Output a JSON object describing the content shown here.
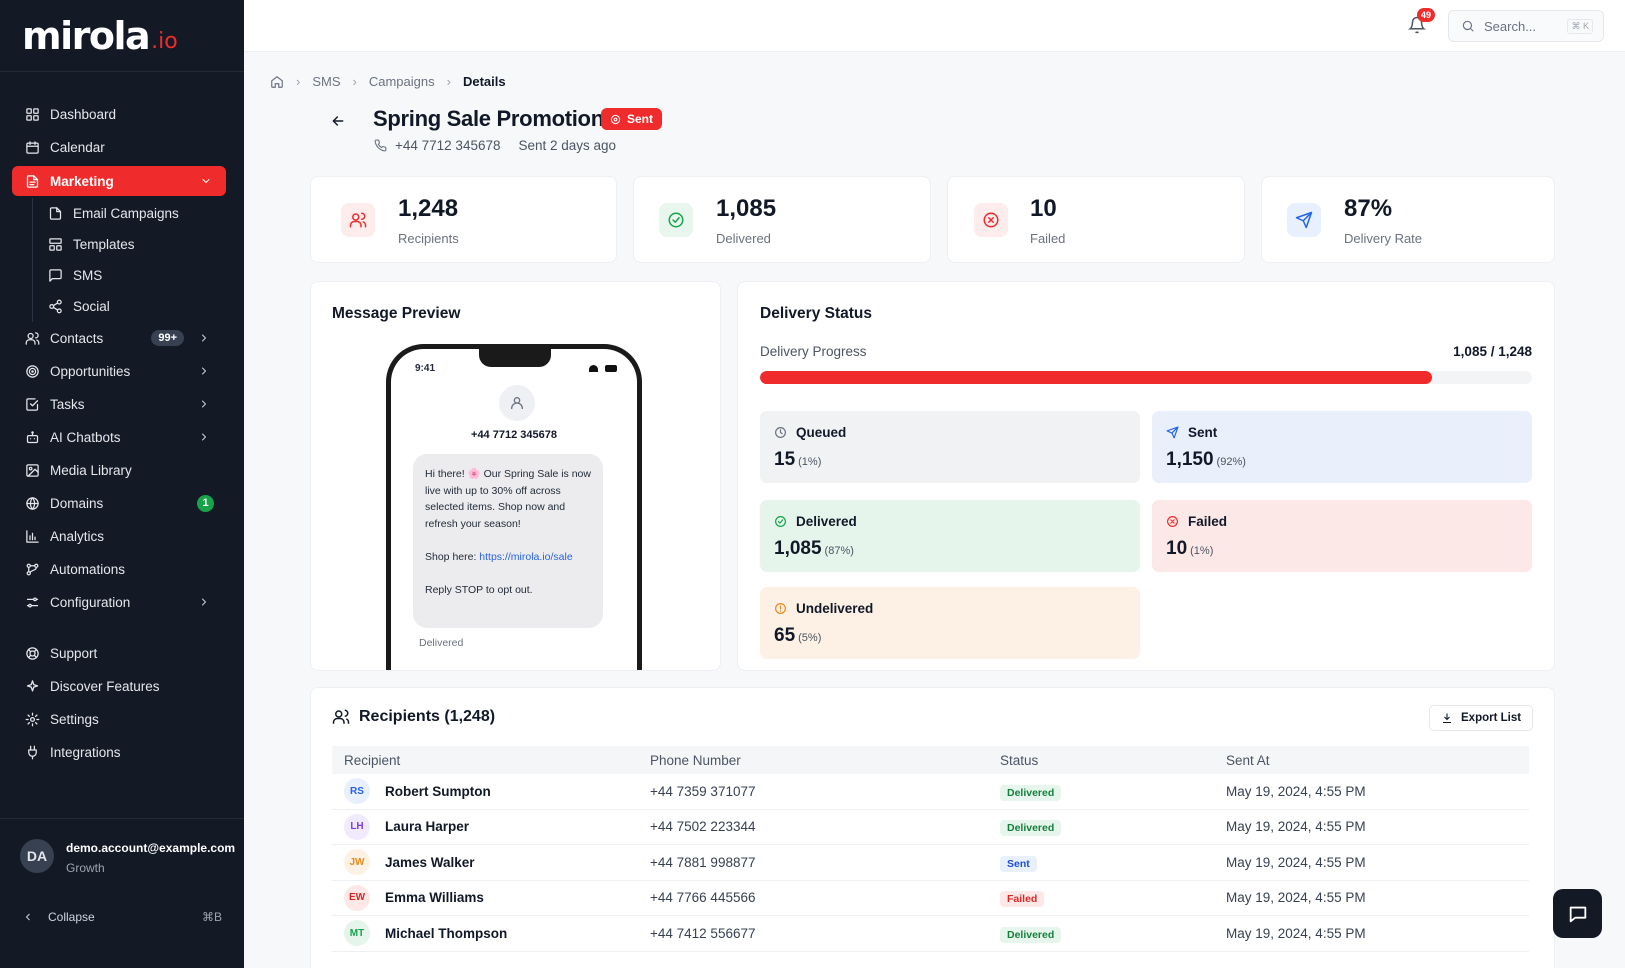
{
  "brand": {
    "name": "mirola",
    "tld": ".io"
  },
  "sidebar": {
    "items": [
      {
        "label": "Dashboard"
      },
      {
        "label": "Calendar"
      },
      {
        "label": "Marketing"
      },
      {
        "label": "Contacts",
        "badge": "99+"
      },
      {
        "label": "Opportunities"
      },
      {
        "label": "Tasks"
      },
      {
        "label": "AI Chatbots"
      },
      {
        "label": "Media Library"
      },
      {
        "label": "Domains",
        "badge": "1"
      },
      {
        "label": "Analytics"
      },
      {
        "label": "Automations"
      },
      {
        "label": "Configuration"
      },
      {
        "label": "Support"
      },
      {
        "label": "Discover Features"
      },
      {
        "label": "Settings"
      },
      {
        "label": "Integrations"
      }
    ],
    "marketing_sub": [
      {
        "label": "Email Campaigns"
      },
      {
        "label": "Templates"
      },
      {
        "label": "SMS"
      },
      {
        "label": "Social"
      }
    ],
    "user": {
      "initials": "DA",
      "email": "demo.account@example.com",
      "plan": "Growth"
    },
    "collapse": {
      "label": "Collapse",
      "shortcut": "⌘B"
    }
  },
  "topbar": {
    "notifications": "49",
    "search_placeholder": "Search...",
    "search_shortcut": "⌘ K"
  },
  "breadcrumb": [
    "SMS",
    "Campaigns",
    "Details"
  ],
  "campaign": {
    "title": "Spring Sale Promotion",
    "status": "Sent",
    "phone": "+44 7712 345678",
    "sent_ago": "Sent 2 days ago"
  },
  "stats": [
    {
      "value": "1,248",
      "label": "Recipients"
    },
    {
      "value": "1,085",
      "label": "Delivered"
    },
    {
      "value": "10",
      "label": "Failed"
    },
    {
      "value": "87%",
      "label": "Delivery Rate"
    }
  ],
  "preview": {
    "title": "Message Preview",
    "time": "9:41",
    "phone": "+44 7712 345678",
    "message_intro": "Hi there! 🌸 Our Spring Sale is now live with up to 30% off across selected items. Shop now and refresh your season!",
    "shop_label": "Shop here: ",
    "shop_link": "https://mirola.io/sale",
    "optout": "Reply STOP to opt out.",
    "status": "Delivered"
  },
  "delivery": {
    "title": "Delivery Status",
    "progress_label": "Delivery Progress",
    "progress_text": "1,085 / 1,248",
    "progress_fraction": 0.87,
    "tiles": [
      {
        "label": "Queued",
        "value": "15",
        "pct": "(1%)"
      },
      {
        "label": "Sent",
        "value": "1,150",
        "pct": "(92%)"
      },
      {
        "label": "Delivered",
        "value": "1,085",
        "pct": "(87%)"
      },
      {
        "label": "Failed",
        "value": "10",
        "pct": "(1%)"
      },
      {
        "label": "Undelivered",
        "value": "65",
        "pct": "(5%)"
      }
    ]
  },
  "recipients": {
    "title": "Recipients (1,248)",
    "export_label": "Export List",
    "columns": [
      "Recipient",
      "Phone Number",
      "Status",
      "Sent At"
    ],
    "rows": [
      {
        "initials": "RS",
        "name": "Robert Sumpton",
        "phone": "+44  7359  371077",
        "status": "Delivered",
        "sent_at": "May 19, 2024, 4:55 PM"
      },
      {
        "initials": "LH",
        "name": "Laura Harper",
        "phone": "+44  7502  223344",
        "status": "Delivered",
        "sent_at": "May 19, 2024, 4:55 PM"
      },
      {
        "initials": "JW",
        "name": "James Walker",
        "phone": "+44  7881  998877",
        "status": "Sent",
        "sent_at": "May 19, 2024, 4:55 PM"
      },
      {
        "initials": "EW",
        "name": "Emma Williams",
        "phone": "+44  7766  445566",
        "status": "Failed",
        "sent_at": "May 19, 2024, 4:55 PM"
      },
      {
        "initials": "MT",
        "name": "Michael Thompson",
        "phone": "+44  7412  556677",
        "status": "Delivered",
        "sent_at": "May 19, 2024, 4:55 PM"
      }
    ]
  },
  "colors": {
    "accent": "#ef2b2b",
    "sidebar_bg": "#131a26",
    "success": "#16a34a",
    "info": "#2563eb"
  }
}
